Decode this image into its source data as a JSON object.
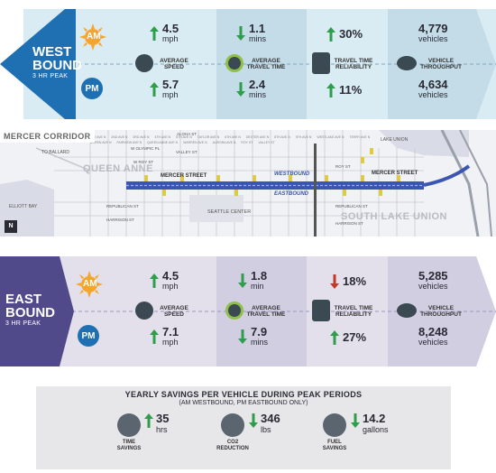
{
  "westbound": {
    "direction_line1": "WEST",
    "direction_line2": "BOUND",
    "period": "3 HR PEAK",
    "am_label": "AM",
    "pm_label": "PM",
    "speed_label": "AVERAGE SPEED",
    "time_label": "AVERAGE TRAVEL TIME",
    "reliability_label": "TRAVEL TIME RELIABILITY",
    "throughput_label": "VEHICLE THROUGHPUT",
    "am": {
      "speed_value": "4.5",
      "speed_unit": "mph",
      "speed_dir": "up",
      "time_value": "1.1",
      "time_unit": "mins",
      "time_dir": "down",
      "reliability_value": "30%",
      "reliability_dir": "up",
      "throughput_value": "4,779",
      "throughput_unit": "vehicles"
    },
    "pm": {
      "speed_value": "5.7",
      "speed_unit": "mph",
      "speed_dir": "up",
      "time_value": "2.4",
      "time_unit": "mins",
      "time_dir": "down",
      "reliability_value": "11%",
      "reliability_dir": "up",
      "throughput_value": "4,634",
      "throughput_unit": "vehicles"
    }
  },
  "map": {
    "title": "MERCER CORRIDOR",
    "neighborhood_1": "QUEEN ANNE",
    "neighborhood_2": "SOUTH LAKE UNION",
    "street_main": "MERCER STREET",
    "street_main_2": "MERCER STREET",
    "westbound_label": "WESTBOUND",
    "eastbound_label": "EASTBOUND",
    "landmark": "SEATTLE CENTER",
    "bay": "ELLIOTT BAY",
    "lake": "LAKE UNION",
    "to_ballard": "TO BALLARD",
    "olympic": "W OLYMPIC PL",
    "roy": "W ROY ST",
    "republican": "REPUBLICAN ST",
    "harrison": "HARRISON ST",
    "valley": "VALLEY ST",
    "roy_east": "ROY ST",
    "republican_east": "REPUBLICAN ST",
    "harrison_east": "HARRISON ST",
    "aloha": "ALOHA ST",
    "north": "N",
    "streets": [
      "1ST AVE N",
      "2ND AVE N",
      "3RD AVE N",
      "4TH AVE N",
      "5TH AVE N",
      "TAYLOR AVE N",
      "6TH AVE N",
      "DEXTER AVE N",
      "8TH AVE N",
      "9TH AVE N",
      "WESTLAKE AVE N",
      "TERRY AVE N",
      "BOREN AVE N",
      "FAIRVIEW AVE N",
      "QUEEN ANNE AVE N",
      "WARREN AVE N",
      "AURORA AVE N",
      "ROY ST",
      "VALLEY ST"
    ]
  },
  "eastbound": {
    "direction_line1": "EAST",
    "direction_line2": "BOUND",
    "period": "3 HR PEAK",
    "am_label": "AM",
    "pm_label": "PM",
    "speed_label": "AVERAGE SPEED",
    "time_label": "AVERAGE TRAVEL TIME",
    "reliability_label": "TRAVEL TIME RELIABILITY",
    "throughput_label": "VEHICLE THROUGHPUT",
    "am": {
      "speed_value": "4.5",
      "speed_unit": "mph",
      "speed_dir": "up",
      "time_value": "1.8",
      "time_unit": "min",
      "time_dir": "down",
      "reliability_value": "18%",
      "reliability_dir": "down-red",
      "throughput_value": "5,285",
      "throughput_unit": "vehicles"
    },
    "pm": {
      "speed_value": "7.1",
      "speed_unit": "mph",
      "speed_dir": "up",
      "time_value": "7.9",
      "time_unit": "mins",
      "time_dir": "down",
      "reliability_value": "27%",
      "reliability_dir": "up",
      "throughput_value": "8,248",
      "throughput_unit": "vehicles"
    }
  },
  "savings": {
    "title": "YEARLY SAVINGS PER VEHICLE DURING PEAK PERIODS",
    "subtitle": "(AM WESTBOUND, PM EASTBOUND ONLY)",
    "items": [
      {
        "value": "35",
        "unit": "hrs",
        "label": "TIME SAVINGS"
      },
      {
        "value": "346",
        "unit": "lbs",
        "label": "CO2 REDUCTION"
      },
      {
        "value": "14.2",
        "unit": "gallons",
        "label": "FUEL SAVINGS"
      }
    ]
  },
  "colors": {
    "west_dark": "#1f6fb3",
    "west_light": "#d9ebf3",
    "west_mid": "#c3dce8",
    "east_dark": "#514a8a",
    "east_light": "#e3e0ec",
    "east_mid": "#d2cee2",
    "green_arrow": "#2e9e4c",
    "red_arrow": "#c0392b",
    "sun": "#f4a52a"
  }
}
